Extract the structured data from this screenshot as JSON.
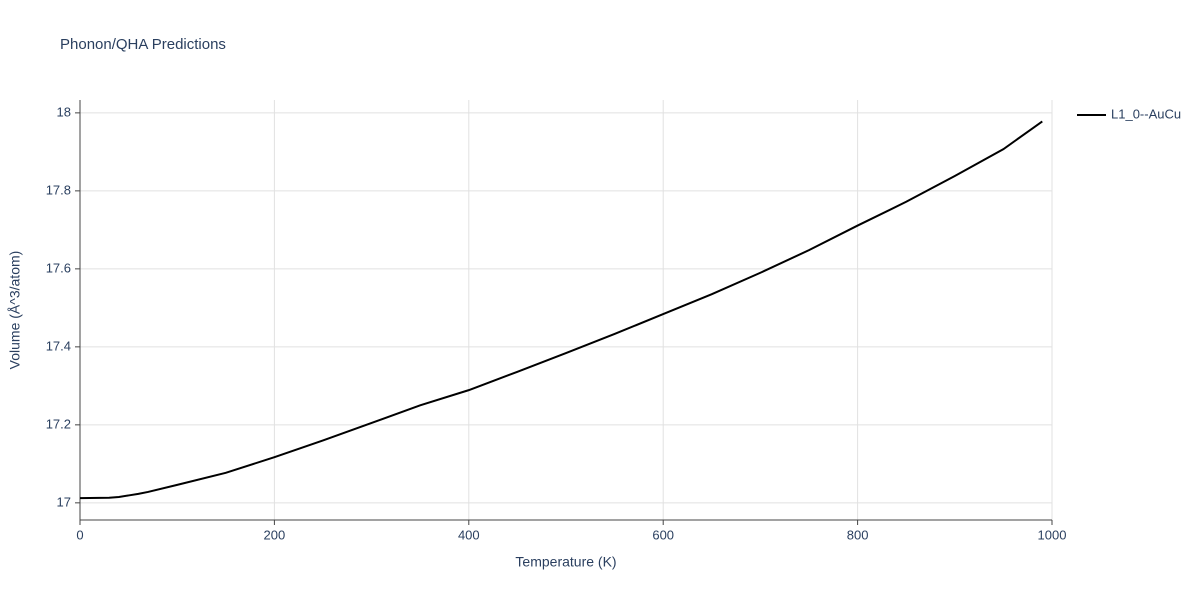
{
  "chart_data": {
    "type": "line",
    "title": "Phonon/QHA Predictions",
    "x_label": "Temperature (K)",
    "y_label": "Volume (Å^3/atom)",
    "x": [
      0,
      30,
      40,
      50,
      60,
      70,
      100,
      150,
      200,
      250,
      300,
      350,
      400,
      450,
      500,
      550,
      600,
      650,
      700,
      750,
      800,
      850,
      900,
      950,
      990
    ],
    "series": [
      {
        "name": "L1_0--AuCu",
        "color": "#000000",
        "values": [
          17.012,
          17.013,
          17.015,
          17.019,
          17.023,
          17.028,
          17.046,
          17.077,
          17.117,
          17.16,
          17.205,
          17.25,
          17.289,
          17.336,
          17.384,
          17.433,
          17.484,
          17.535,
          17.59,
          17.648,
          17.711,
          17.772,
          17.838,
          17.907,
          17.978
        ]
      }
    ],
    "xlim": [
      0,
      1000
    ],
    "xticks": [
      0,
      200,
      400,
      600,
      800,
      1000
    ],
    "ylim": [
      16.956,
      18.033
    ],
    "yticks": [
      17,
      17.2,
      17.4,
      17.6,
      17.8,
      18
    ],
    "grid": true,
    "legend": "right"
  }
}
